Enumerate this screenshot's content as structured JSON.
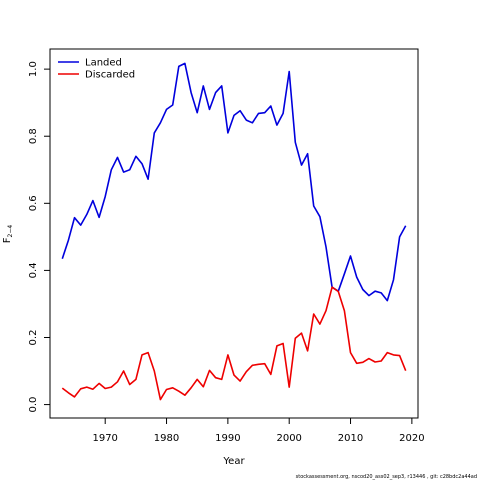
{
  "chart_data": {
    "type": "line",
    "xlabel": "Year",
    "ylabel_main": "F",
    "ylabel_sub": "2−4",
    "xlim": [
      1961,
      2021
    ],
    "ylim": [
      -0.04,
      1.06
    ],
    "xticks": [
      1970,
      1980,
      1990,
      2000,
      2010,
      2020
    ],
    "yticks": [
      0.0,
      0.2,
      0.4,
      0.6,
      0.8,
      1.0
    ],
    "ytick_labels": [
      "0.0",
      "0.2",
      "0.4",
      "0.6",
      "0.8",
      "1.0"
    ],
    "legend_position": "top-left",
    "x": [
      1963,
      1964,
      1965,
      1966,
      1967,
      1968,
      1969,
      1970,
      1971,
      1972,
      1973,
      1974,
      1975,
      1976,
      1977,
      1978,
      1979,
      1980,
      1981,
      1982,
      1983,
      1984,
      1985,
      1986,
      1987,
      1988,
      1989,
      1990,
      1991,
      1992,
      1993,
      1994,
      1995,
      1996,
      1997,
      1998,
      1999,
      2000,
      2001,
      2002,
      2003,
      2004,
      2005,
      2006,
      2007,
      2008,
      2009,
      2010,
      2011,
      2012,
      2013,
      2014,
      2015,
      2016,
      2017,
      2018,
      2019
    ],
    "series": [
      {
        "name": "Landed",
        "color": "#0000dd",
        "values": [
          0.435,
          0.49,
          0.557,
          0.535,
          0.567,
          0.608,
          0.558,
          0.62,
          0.7,
          0.737,
          0.693,
          0.7,
          0.74,
          0.718,
          0.672,
          0.81,
          0.84,
          0.88,
          0.893,
          1.008,
          1.017,
          0.93,
          0.87,
          0.95,
          0.88,
          0.93,
          0.95,
          0.81,
          0.862,
          0.876,
          0.848,
          0.84,
          0.868,
          0.87,
          0.89,
          0.833,
          0.868,
          0.993,
          0.782,
          0.714,
          0.748,
          0.592,
          0.56,
          0.47,
          0.35,
          0.338,
          0.39,
          0.443,
          0.38,
          0.343,
          0.325,
          0.338,
          0.333,
          0.31,
          0.372,
          0.5,
          0.533
        ]
      },
      {
        "name": "Discarded",
        "color": "#ee0000",
        "values": [
          0.049,
          0.035,
          0.023,
          0.047,
          0.052,
          0.046,
          0.063,
          0.048,
          0.052,
          0.068,
          0.1,
          0.06,
          0.075,
          0.148,
          0.155,
          0.1,
          0.015,
          0.045,
          0.05,
          0.04,
          0.028,
          0.05,
          0.075,
          0.053,
          0.102,
          0.08,
          0.075,
          0.148,
          0.088,
          0.07,
          0.098,
          0.117,
          0.12,
          0.122,
          0.09,
          0.175,
          0.182,
          0.052,
          0.198,
          0.213,
          0.16,
          0.27,
          0.24,
          0.28,
          0.35,
          0.337,
          0.28,
          0.155,
          0.123,
          0.126,
          0.137,
          0.127,
          0.13,
          0.155,
          0.148,
          0.146,
          0.101
        ]
      }
    ]
  },
  "footer": {
    "text": "stockassessment.org, nscod20_ass02_sep3, r13446 , git: c28bdc2a44ad"
  }
}
